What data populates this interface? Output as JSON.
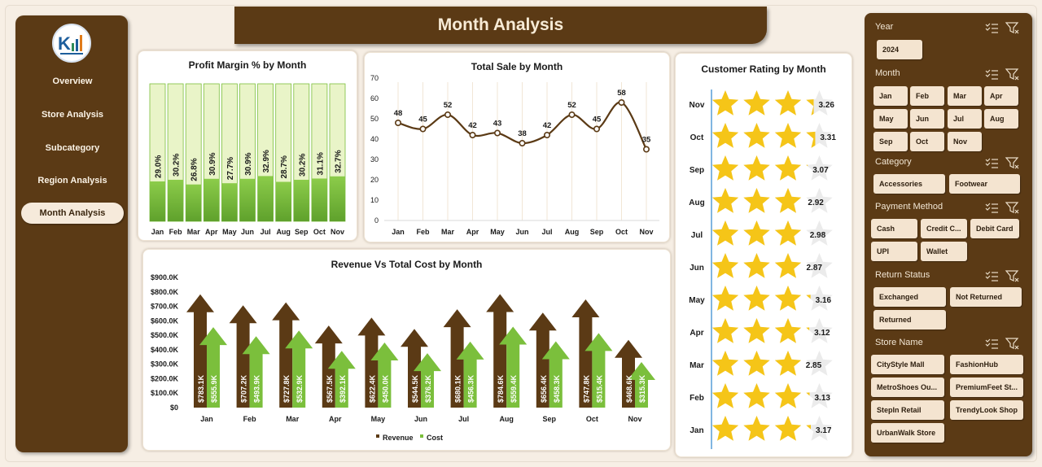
{
  "title": "Month Analysis",
  "nav": [
    {
      "label": "Overview"
    },
    {
      "label": "Store Analysis"
    },
    {
      "label": "Subcategory"
    },
    {
      "label": "Region Analysis"
    },
    {
      "label": "Month Analysis",
      "active": true
    }
  ],
  "profit_margin": {
    "title": "Profit Margin % by Month",
    "months": [
      "Jan",
      "Feb",
      "Mar",
      "Apr",
      "May",
      "Jun",
      "Jul",
      "Aug",
      "Sep",
      "Oct",
      "Nov"
    ],
    "values_pct": [
      29.0,
      30.2,
      26.8,
      30.9,
      27.7,
      30.9,
      32.9,
      28.7,
      30.2,
      31.1,
      32.7
    ],
    "labels": [
      "29.0%",
      "30.2%",
      "26.8%",
      "30.9%",
      "27.7%",
      "30.9%",
      "32.9%",
      "28.7%",
      "30.2%",
      "31.1%",
      "32.7%"
    ]
  },
  "total_sale": {
    "title": "Total Sale by Month",
    "months": [
      "Jan",
      "Feb",
      "Mar",
      "Apr",
      "May",
      "Jun",
      "Jul",
      "Aug",
      "Sep",
      "Oct",
      "Nov"
    ],
    "values": [
      48,
      45,
      52,
      42,
      43,
      38,
      42,
      52,
      45,
      58,
      35
    ],
    "yticks": [
      "70",
      "60",
      "50",
      "40",
      "30",
      "20",
      "10",
      "0"
    ]
  },
  "customer_rating": {
    "title": "Customer Rating by Month",
    "months": [
      "Nov",
      "Oct",
      "Sep",
      "Aug",
      "Jul",
      "Jun",
      "May",
      "Apr",
      "Mar",
      "Feb",
      "Jan"
    ],
    "values": [
      "3.26",
      "3.31",
      "3.07",
      "2.92",
      "2.98",
      "2.87",
      "3.16",
      "3.12",
      "2.85",
      "3.13",
      "3.17"
    ]
  },
  "revenue_cost": {
    "title": "Revenue Vs Total Cost by Month",
    "months": [
      "Jan",
      "Feb",
      "Mar",
      "Apr",
      "May",
      "Jun",
      "Jul",
      "Aug",
      "Sep",
      "Oct",
      "Nov"
    ],
    "revenue": [
      783.1,
      707.2,
      727.8,
      567.5,
      622.4,
      544.5,
      680.1,
      784.6,
      656.4,
      747.8,
      468.6
    ],
    "cost": [
      555.9,
      493.9,
      532.9,
      392.1,
      450.0,
      376.2,
      456.3,
      559.4,
      458.3,
      515.4,
      315.3
    ],
    "revenue_labels": [
      "$783.1K",
      "$707.2K",
      "$727.8K",
      "$567.5K",
      "$622.4K",
      "$544.5K",
      "$680.1K",
      "$784.6K",
      "$656.4K",
      "$747.8K",
      "$468.6K"
    ],
    "cost_labels": [
      "$555.9K",
      "$493.9K",
      "$532.9K",
      "$392.1K",
      "$450.0K",
      "$376.2K",
      "$456.3K",
      "$559.4K",
      "$458.3K",
      "$515.4K",
      "$315.3K"
    ],
    "yticks": [
      "$900.0K",
      "$800.0K",
      "$700.0K",
      "$600.0K",
      "$500.0K",
      "$400.0K",
      "$300.0K",
      "$200.0K",
      "$100.0K",
      "$0"
    ],
    "legend": {
      "revenue": "Revenue",
      "cost": "Cost"
    }
  },
  "slicers": {
    "year": {
      "title": "Year",
      "items": [
        "2024"
      ]
    },
    "month": {
      "title": "Month",
      "items": [
        "Jan",
        "Feb",
        "Mar",
        "Apr",
        "May",
        "Jun",
        "Jul",
        "Aug",
        "Sep",
        "Oct",
        "Nov"
      ]
    },
    "category": {
      "title": "Category",
      "items": [
        "Accessories",
        "Footwear"
      ]
    },
    "payment": {
      "title": "Payment Method",
      "items": [
        "Cash",
        "Credit C...",
        "Debit Card",
        "UPI",
        "Wallet"
      ]
    },
    "return_status": {
      "title": "Return Status",
      "items": [
        "Exchanged",
        "Not Returned",
        "Returned"
      ]
    },
    "store": {
      "title": "Store Name",
      "items": [
        "CityStyle Mall",
        "FashionHub",
        "MetroShoes Ou...",
        "PremiumFeet St...",
        "StepIn Retail",
        "TrendyLook Shop",
        "UrbanWalk Store"
      ]
    }
  },
  "chart_data": [
    {
      "type": "bar",
      "title": "Profit Margin % by Month",
      "categories": [
        "Jan",
        "Feb",
        "Mar",
        "Apr",
        "May",
        "Jun",
        "Jul",
        "Aug",
        "Sep",
        "Oct",
        "Nov"
      ],
      "values": [
        29.0,
        30.2,
        26.8,
        30.9,
        27.7,
        30.9,
        32.9,
        28.7,
        30.2,
        31.1,
        32.7
      ],
      "ylim": [
        0,
        100
      ]
    },
    {
      "type": "line",
      "title": "Total Sale by Month",
      "categories": [
        "Jan",
        "Feb",
        "Mar",
        "Apr",
        "May",
        "Jun",
        "Jul",
        "Aug",
        "Sep",
        "Oct",
        "Nov"
      ],
      "values": [
        48,
        45,
        52,
        42,
        43,
        38,
        42,
        52,
        45,
        58,
        35
      ],
      "ylim": [
        0,
        70
      ]
    },
    {
      "type": "bar",
      "title": "Customer Rating by Month",
      "categories": [
        "Nov",
        "Oct",
        "Sep",
        "Aug",
        "Jul",
        "Jun",
        "May",
        "Apr",
        "Mar",
        "Feb",
        "Jan"
      ],
      "values": [
        3.26,
        3.31,
        3.07,
        2.92,
        2.98,
        2.87,
        3.16,
        3.12,
        2.85,
        3.13,
        3.17
      ],
      "ylim": [
        0,
        5
      ]
    },
    {
      "type": "bar",
      "title": "Revenue Vs Total Cost by Month",
      "categories": [
        "Jan",
        "Feb",
        "Mar",
        "Apr",
        "May",
        "Jun",
        "Jul",
        "Aug",
        "Sep",
        "Oct",
        "Nov"
      ],
      "series": [
        {
          "name": "Revenue",
          "values": [
            783.1,
            707.2,
            727.8,
            567.5,
            622.4,
            544.5,
            680.1,
            784.6,
            656.4,
            747.8,
            468.6
          ]
        },
        {
          "name": "Cost",
          "values": [
            555.9,
            493.9,
            532.9,
            392.1,
            450.0,
            376.2,
            456.3,
            559.4,
            458.3,
            515.4,
            315.3
          ]
        }
      ],
      "ylabel": "",
      "ylim": [
        0,
        900
      ]
    }
  ],
  "colors": {
    "brown": "#5b3a15",
    "green": "#7bbf3c",
    "light_green": "#e9f4c8",
    "star": "#f5c518",
    "line": "#5b3a15"
  }
}
